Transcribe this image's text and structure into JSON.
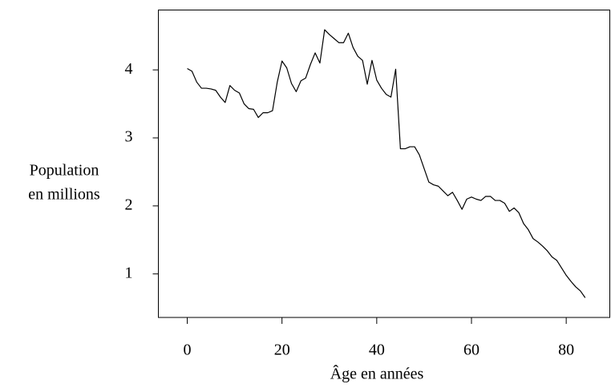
{
  "chart_data": {
    "type": "line",
    "x_label": "Âge en années",
    "y_label": [
      "Population",
      "en millions"
    ],
    "x": [
      0,
      1,
      2,
      3,
      4,
      5,
      6,
      7,
      8,
      9,
      10,
      11,
      12,
      13,
      14,
      15,
      16,
      17,
      18,
      19,
      20,
      21,
      22,
      23,
      24,
      25,
      26,
      27,
      28,
      29,
      30,
      31,
      32,
      33,
      34,
      35,
      36,
      37,
      38,
      39,
      40,
      41,
      42,
      43,
      44,
      45,
      46,
      47,
      48,
      49,
      50,
      51,
      52,
      53,
      54,
      55,
      56,
      57,
      58,
      59,
      60,
      61,
      62,
      63,
      64,
      65,
      66,
      67,
      68,
      69,
      70,
      71,
      72,
      73,
      74,
      75,
      76,
      77,
      78,
      79,
      80,
      81,
      82,
      83,
      84
    ],
    "series": [
      {
        "color": "#000000",
        "values": [
          4.02,
          3.98,
          3.82,
          3.73,
          3.73,
          3.72,
          3.7,
          3.6,
          3.52,
          3.77,
          3.7,
          3.66,
          3.5,
          3.43,
          3.42,
          3.3,
          3.37,
          3.37,
          3.4,
          3.82,
          4.13,
          4.03,
          3.8,
          3.68,
          3.84,
          3.88,
          4.08,
          4.25,
          4.1,
          4.59,
          4.52,
          4.46,
          4.4,
          4.4,
          4.54,
          4.33,
          4.2,
          4.14,
          3.79,
          4.14,
          3.85,
          3.73,
          3.64,
          3.6,
          4.01,
          2.84,
          2.84,
          2.87,
          2.87,
          2.75,
          2.55,
          2.35,
          2.31,
          2.29,
          2.22,
          2.15,
          2.2,
          2.08,
          1.95,
          2.1,
          2.13,
          2.1,
          2.08,
          2.14,
          2.14,
          2.08,
          2.08,
          2.04,
          1.92,
          1.97,
          1.9,
          1.74,
          1.65,
          1.52,
          1.47,
          1.41,
          1.34,
          1.25,
          1.2,
          1.09,
          0.98,
          0.89,
          0.81,
          0.75,
          0.65
        ]
      }
    ],
    "xlim": [
      -6.1,
      89.2
    ],
    "xticks": [
      0,
      20,
      40,
      60,
      80
    ],
    "ylim": [
      0.36,
      4.88
    ],
    "yticks": [
      1,
      2,
      3,
      4
    ],
    "grid": false
  }
}
